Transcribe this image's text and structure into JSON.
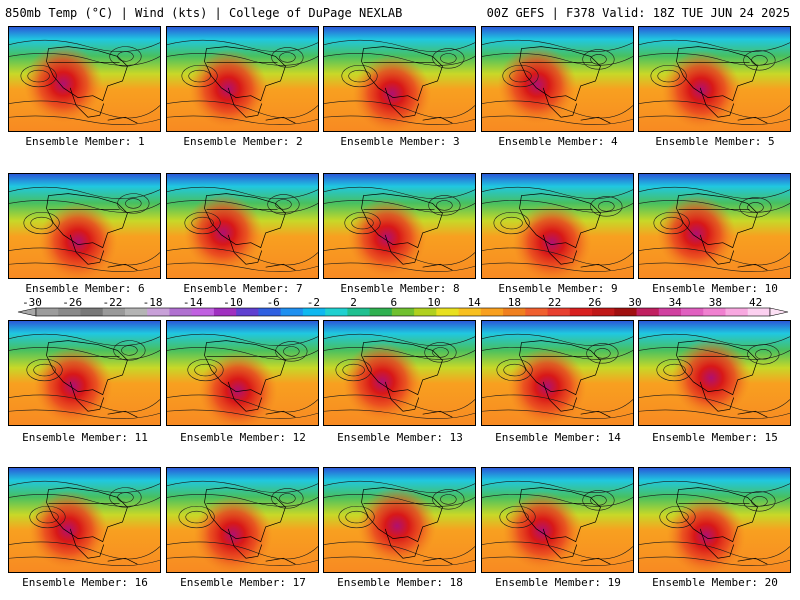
{
  "header": {
    "left": "850mb Temp (°C) | Wind (kts) | College of DuPage NEXLAB",
    "right": "00Z GEFS | F378 Valid: 18Z TUE JUN 24 2025"
  },
  "caption_prefix": "Ensemble Member: ",
  "members": [
    1,
    2,
    3,
    4,
    5,
    6,
    7,
    8,
    9,
    10,
    11,
    12,
    13,
    14,
    15,
    16,
    17,
    18,
    19,
    20
  ],
  "colorbar": {
    "ticks": [
      "-30",
      "-26",
      "-22",
      "-18",
      "-14",
      "-10",
      "-6",
      "-2",
      "2",
      "6",
      "10",
      "14",
      "18",
      "22",
      "26",
      "30",
      "34",
      "38",
      "42"
    ],
    "colors": [
      "#9c9c9c",
      "#8a8a8a",
      "#787878",
      "#9a9a9a",
      "#b4b4b4",
      "#c8a0d8",
      "#b070d0",
      "#c060e0",
      "#a030c0",
      "#6040d0",
      "#3060e0",
      "#2090f0",
      "#10b8f0",
      "#20d0d0",
      "#20c090",
      "#30b050",
      "#70c030",
      "#b0d020",
      "#e8e020",
      "#f8c020",
      "#f8a020",
      "#f08020",
      "#f06030",
      "#e84030",
      "#d82020",
      "#c01818",
      "#a01010",
      "#c02060",
      "#d040a0",
      "#e060c0",
      "#f080d0",
      "#f8a8e0",
      "#fcd0f0"
    ]
  }
}
